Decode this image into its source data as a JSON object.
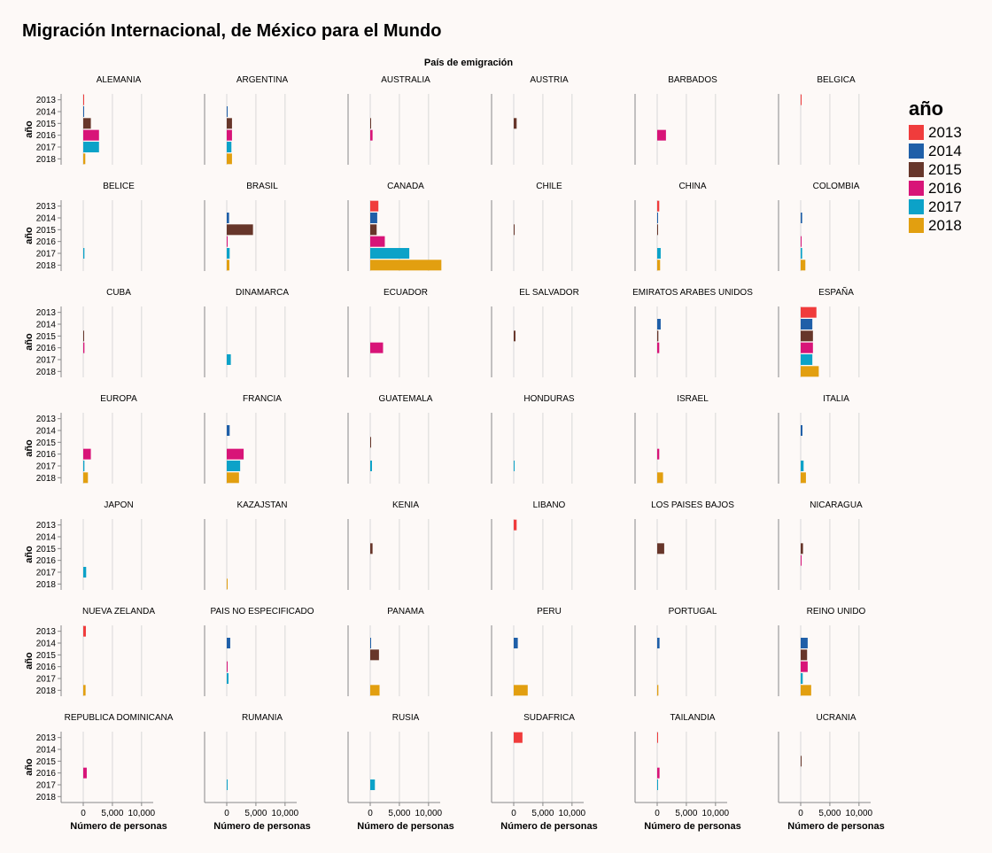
{
  "chart_data": {
    "type": "bar",
    "title": "Migración Internacional, de México para el Mundo",
    "facet_header": "País de emigración",
    "xlabel": "Número de personas",
    "ylabel": "año",
    "xlim": [
      0,
      12000
    ],
    "x_ticks": [
      0,
      5000,
      10000
    ],
    "x_tick_labels": [
      "0",
      "5,000",
      "10,000"
    ],
    "years": [
      "2013",
      "2014",
      "2015",
      "2016",
      "2017",
      "2018"
    ],
    "legend": {
      "title": "año",
      "placement": "right",
      "entries": [
        {
          "label": "2013",
          "color": "#f03c3c"
        },
        {
          "label": "2014",
          "color": "#1f5fa8"
        },
        {
          "label": "2015",
          "color": "#67362a"
        },
        {
          "label": "2016",
          "color": "#d81478"
        },
        {
          "label": "2017",
          "color": "#0ca2c8"
        },
        {
          "label": "2018",
          "color": "#e29f10"
        }
      ]
    },
    "facets": [
      {
        "country": "ALEMANIA",
        "values": [
          100,
          150,
          1300,
          2700,
          2700,
          350
        ]
      },
      {
        "country": "ARGENTINA",
        "values": [
          0,
          150,
          900,
          900,
          800,
          900
        ]
      },
      {
        "country": "AUSTRALIA",
        "values": [
          0,
          0,
          150,
          400,
          0,
          0
        ]
      },
      {
        "country": "AUSTRIA",
        "values": [
          0,
          0,
          500,
          0,
          0,
          0
        ]
      },
      {
        "country": "BARBADOS",
        "values": [
          0,
          0,
          0,
          1500,
          0,
          0
        ]
      },
      {
        "country": "BELGICA",
        "values": [
          150,
          0,
          0,
          0,
          0,
          0
        ]
      },
      {
        "country": "BELICE",
        "values": [
          0,
          0,
          0,
          0,
          200,
          0
        ]
      },
      {
        "country": "BRASIL",
        "values": [
          0,
          400,
          4500,
          150,
          500,
          450
        ]
      },
      {
        "country": "CANADA",
        "values": [
          1400,
          1200,
          1100,
          2500,
          6700,
          12200
        ]
      },
      {
        "country": "CHILE",
        "values": [
          0,
          0,
          150,
          0,
          0,
          0
        ]
      },
      {
        "country": "CHINA",
        "values": [
          350,
          150,
          150,
          0,
          600,
          500
        ]
      },
      {
        "country": "COLOMBIA",
        "values": [
          0,
          250,
          0,
          100,
          250,
          800
        ]
      },
      {
        "country": "CUBA",
        "values": [
          0,
          0,
          100,
          200,
          0,
          0
        ]
      },
      {
        "country": "DINAMARCA",
        "values": [
          0,
          0,
          0,
          0,
          700,
          0
        ]
      },
      {
        "country": "ECUADOR",
        "values": [
          0,
          0,
          0,
          2200,
          0,
          0
        ]
      },
      {
        "country": "EL SALVADOR",
        "values": [
          0,
          0,
          300,
          0,
          0,
          0
        ]
      },
      {
        "country": "EMIRATOS ARABES UNIDOS",
        "values": [
          0,
          600,
          200,
          350,
          0,
          0
        ]
      },
      {
        "country": "ESPAÑA",
        "values": [
          2700,
          2000,
          2100,
          2100,
          2000,
          3100
        ]
      },
      {
        "country": "EUROPA",
        "values": [
          0,
          0,
          0,
          1300,
          200,
          800
        ]
      },
      {
        "country": "FRANCIA",
        "values": [
          0,
          500,
          0,
          2900,
          2300,
          2100
        ]
      },
      {
        "country": "GUATEMALA",
        "values": [
          0,
          0,
          150,
          0,
          300,
          0
        ]
      },
      {
        "country": "HONDURAS",
        "values": [
          0,
          0,
          0,
          0,
          150,
          0
        ]
      },
      {
        "country": "ISRAEL",
        "values": [
          0,
          0,
          0,
          350,
          0,
          1000
        ]
      },
      {
        "country": "ITALIA",
        "values": [
          0,
          300,
          0,
          0,
          500,
          900
        ]
      },
      {
        "country": "JAPON",
        "values": [
          0,
          0,
          0,
          0,
          500,
          0
        ]
      },
      {
        "country": "KAZAJSTAN",
        "values": [
          0,
          0,
          0,
          0,
          0,
          150
        ]
      },
      {
        "country": "KENIA",
        "values": [
          0,
          0,
          400,
          0,
          0,
          0
        ]
      },
      {
        "country": "LIBANO",
        "values": [
          500,
          0,
          0,
          0,
          0,
          0
        ]
      },
      {
        "country": "LOS PAISES BAJOS",
        "values": [
          0,
          0,
          1200,
          0,
          0,
          0
        ]
      },
      {
        "country": "NICARAGUA",
        "values": [
          0,
          0,
          400,
          150,
          0,
          0
        ]
      },
      {
        "country": "NUEVA ZELANDA",
        "values": [
          450,
          0,
          0,
          0,
          0,
          400
        ]
      },
      {
        "country": "PAIS NO ESPECIFICADO",
        "values": [
          0,
          600,
          0,
          150,
          300,
          0
        ]
      },
      {
        "country": "PANAMA",
        "values": [
          0,
          150,
          1500,
          0,
          0,
          1600
        ]
      },
      {
        "country": "PERU",
        "values": [
          0,
          700,
          0,
          0,
          0,
          2400
        ]
      },
      {
        "country": "PORTUGAL",
        "values": [
          0,
          400,
          0,
          0,
          0,
          200
        ]
      },
      {
        "country": "REINO UNIDO",
        "values": [
          0,
          1200,
          1100,
          1200,
          350,
          1800
        ]
      },
      {
        "country": "REPUBLICA DOMINICANA",
        "values": [
          0,
          0,
          0,
          600,
          0,
          0
        ]
      },
      {
        "country": "RUMANIA",
        "values": [
          0,
          0,
          0,
          0,
          150,
          0
        ]
      },
      {
        "country": "RUSIA",
        "values": [
          0,
          0,
          0,
          0,
          800,
          0
        ]
      },
      {
        "country": "SUDAFRICA",
        "values": [
          1500,
          0,
          0,
          0,
          0,
          0
        ]
      },
      {
        "country": "TAILANDIA",
        "values": [
          100,
          0,
          0,
          400,
          150,
          0
        ]
      },
      {
        "country": "UCRANIA",
        "values": [
          0,
          0,
          150,
          0,
          0,
          0
        ]
      }
    ]
  }
}
